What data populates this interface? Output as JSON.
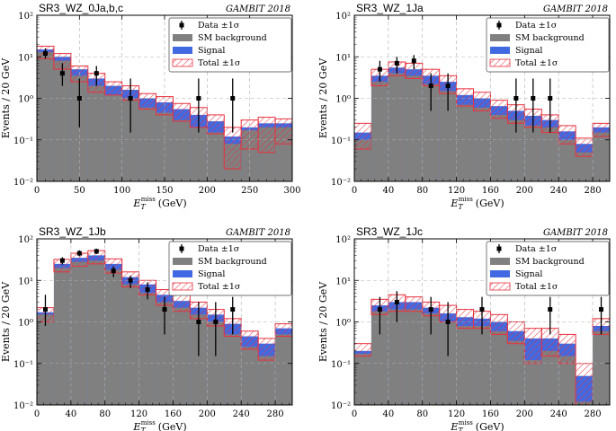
{
  "figure": {
    "watermark": "GAMBIT 2018",
    "colors": {
      "background": "#808080",
      "signal": "#4169e1",
      "total": "#e8303e",
      "data": "#000000",
      "grid": "#b0b0b0"
    }
  },
  "legend_entries": {
    "data": "Data ±1σ",
    "background": "SM background",
    "signal": "Signal",
    "total": "Total ±1σ"
  },
  "chart_data": [
    {
      "type": "bar",
      "title": "SR3_WZ_0Ja,b,c",
      "xlabel_main": "E",
      "xlabel_sub": "T",
      "xlabel_sup": "miss",
      "xlabel_unit": "(GeV)",
      "ylabel": "Events / 20 GeV",
      "xlim": [
        0,
        300
      ],
      "ylim": [
        0.01,
        100
      ],
      "yscale": "log",
      "xticks": [
        0,
        50,
        100,
        150,
        200,
        250,
        300
      ],
      "yticks": [
        "10⁻²",
        "10⁻¹",
        "10⁰",
        "10¹",
        "10²"
      ],
      "bin_edges": [
        0,
        20,
        40,
        60,
        80,
        100,
        120,
        140,
        160,
        180,
        200,
        220,
        240,
        260,
        280,
        300
      ],
      "background": [
        13,
        8,
        3.5,
        2.0,
        1.2,
        1.0,
        0.6,
        0.45,
        0.3,
        0.2,
        0.15,
        0.08,
        0.17,
        0.2,
        0.2
      ],
      "signal": [
        15,
        10,
        5,
        3.0,
        2.0,
        1.6,
        1.0,
        0.8,
        0.55,
        0.4,
        0.28,
        0.12,
        0.2,
        0.25,
        0.25
      ],
      "total_err_low": [
        9,
        5,
        2.5,
        1.4,
        1.2,
        0.9,
        0.55,
        0.4,
        0.28,
        0.2,
        0.14,
        0.02,
        0.06,
        0.05,
        0.08
      ],
      "total_err_high": [
        18,
        12,
        6,
        4,
        2.5,
        2.0,
        1.3,
        1.1,
        0.75,
        0.6,
        0.4,
        0.2,
        0.3,
        0.35,
        0.32
      ],
      "data_x": [
        10,
        30,
        50,
        70,
        110,
        190,
        230
      ],
      "data_y": [
        12,
        4,
        1,
        4,
        1,
        1,
        1
      ],
      "data_err_low": [
        9,
        2,
        0.2,
        2,
        0.15,
        0.15,
        0.15
      ],
      "data_err_high": [
        16,
        7,
        3,
        6,
        3,
        3,
        3
      ]
    },
    {
      "type": "bar",
      "title": "SR3_WZ_1Ja",
      "xlabel_main": "E",
      "xlabel_sub": "T",
      "xlabel_sup": "miss",
      "xlabel_unit": "(GeV)",
      "ylabel": "Events / 20 GeV",
      "xlim": [
        0,
        300
      ],
      "ylim": [
        0.01,
        100
      ],
      "yscale": "log",
      "xticks": [
        0,
        40,
        80,
        120,
        160,
        200,
        240,
        280
      ],
      "yticks": [
        "10⁻²",
        "10⁻¹",
        "10⁰",
        "10¹",
        "10²"
      ],
      "bin_edges": [
        0,
        20,
        40,
        60,
        80,
        100,
        120,
        140,
        160,
        180,
        200,
        220,
        240,
        260,
        280,
        300
      ],
      "background": [
        0.1,
        2.5,
        4.0,
        3.5,
        2.2,
        1.5,
        0.7,
        0.6,
        0.4,
        0.3,
        0.22,
        0.2,
        0.1,
        0.05,
        0.15
      ],
      "signal": [
        0.15,
        3.5,
        5.5,
        5.0,
        3.5,
        2.5,
        1.2,
        1.0,
        0.65,
        0.5,
        0.38,
        0.3,
        0.16,
        0.08,
        0.2
      ],
      "total_err_low": [
        0.06,
        2.0,
        3.5,
        3.0,
        2.0,
        1.3,
        0.65,
        0.5,
        0.33,
        0.25,
        0.2,
        0.15,
        0.08,
        0.04,
        0.12
      ],
      "total_err_high": [
        0.25,
        5.0,
        7.5,
        7.0,
        5.0,
        3.5,
        1.7,
        1.4,
        0.9,
        0.7,
        0.55,
        0.4,
        0.22,
        0.11,
        0.25
      ],
      "data_x": [
        30,
        50,
        70,
        90,
        110,
        190,
        210,
        230
      ],
      "data_y": [
        5,
        7,
        8,
        2,
        2,
        1,
        1,
        1
      ],
      "data_err_low": [
        2.5,
        4,
        5,
        0.5,
        0.5,
        0.15,
        0.15,
        0.15
      ],
      "data_err_high": [
        8,
        10,
        11,
        4,
        4,
        3,
        3,
        3
      ]
    },
    {
      "type": "bar",
      "title": "SR3_WZ_1Jb",
      "xlabel_main": "E",
      "xlabel_sub": "T",
      "xlabel_sup": "miss",
      "xlabel_unit": "(GeV)",
      "ylabel": "Events / 20 GeV",
      "xlim": [
        0,
        300
      ],
      "ylim": [
        0.01,
        100
      ],
      "yscale": "log",
      "xticks": [
        0,
        40,
        80,
        120,
        160,
        200,
        240,
        280
      ],
      "yticks": [
        "10⁻²",
        "10⁻¹",
        "10⁰",
        "10¹",
        "10²"
      ],
      "bin_edges": [
        0,
        20,
        40,
        60,
        80,
        100,
        120,
        140,
        160,
        180,
        200,
        220,
        240,
        260,
        280,
        300
      ],
      "background": [
        1.5,
        20,
        28,
        30,
        18,
        8,
        5,
        3,
        2.2,
        1.5,
        1.0,
        0.5,
        0.25,
        0.15,
        0.5
      ],
      "signal": [
        1.7,
        25,
        35,
        40,
        25,
        12,
        8,
        4.5,
        3.2,
        2.2,
        1.5,
        0.9,
        0.45,
        0.3,
        0.7
      ],
      "total_err_low": [
        1.0,
        16,
        22,
        25,
        15,
        7,
        4.5,
        2.5,
        1.8,
        1.2,
        0.8,
        0.45,
        0.22,
        0.12,
        0.45
      ],
      "total_err_high": [
        2.2,
        32,
        45,
        52,
        33,
        16,
        10,
        6,
        4.5,
        3,
        2,
        1.2,
        0.6,
        0.4,
        0.9
      ],
      "data_x": [
        10,
        30,
        50,
        70,
        90,
        110,
        130,
        150,
        190,
        210,
        230
      ],
      "data_y": [
        2,
        30,
        45,
        50,
        17,
        10,
        6,
        2,
        1,
        1,
        2
      ],
      "data_err_low": [
        0.8,
        24,
        38,
        43,
        12,
        6.5,
        3.5,
        0.5,
        0.15,
        0.15,
        0.5
      ],
      "data_err_high": [
        4.5,
        36,
        53,
        58,
        22,
        13,
        9,
        4,
        3,
        3,
        4
      ]
    },
    {
      "type": "bar",
      "title": "SR3_WZ_1Jc",
      "xlabel_main": "E",
      "xlabel_sub": "T",
      "xlabel_sup": "miss",
      "xlabel_unit": "(GeV)",
      "ylabel": "Events / 20 GeV",
      "xlim": [
        0,
        300
      ],
      "ylim": [
        0.01,
        100
      ],
      "yscale": "log",
      "xticks": [
        0,
        40,
        80,
        120,
        160,
        200,
        240,
        280
      ],
      "yticks": [
        "10⁻²",
        "10⁻¹",
        "10⁰",
        "10¹",
        "10²"
      ],
      "bin_edges": [
        0,
        20,
        40,
        60,
        80,
        100,
        120,
        140,
        160,
        180,
        200,
        220,
        240,
        260,
        280,
        300
      ],
      "background": [
        0.17,
        1.8,
        2.0,
        2.0,
        1.6,
        1.0,
        0.8,
        0.8,
        0.6,
        0.35,
        0.12,
        0.2,
        0.15,
        0.012,
        0.6
      ],
      "signal": [
        0.2,
        2.5,
        3.0,
        3.0,
        2.2,
        1.6,
        1.3,
        1.2,
        1.0,
        0.6,
        0.4,
        0.4,
        0.3,
        0.05,
        0.8
      ],
      "total_err_low": [
        0.15,
        1.5,
        1.8,
        1.8,
        1.4,
        1.0,
        0.7,
        0.7,
        0.5,
        0.3,
        0.1,
        0.15,
        0.1,
        0.01,
        0.5
      ],
      "total_err_high": [
        0.3,
        3.5,
        4.5,
        4.0,
        3.0,
        2.5,
        2.0,
        1.8,
        1.5,
        1.0,
        0.7,
        0.7,
        0.5,
        0.1,
        1.2
      ],
      "data_x": [
        30,
        50,
        90,
        110,
        150,
        230,
        290
      ],
      "data_y": [
        2,
        3,
        2,
        1,
        2,
        2,
        2
      ],
      "data_err_low": [
        0.5,
        1,
        0.5,
        0.15,
        0.5,
        0.5,
        0.5
      ],
      "data_err_high": [
        4,
        5.5,
        4,
        3,
        4,
        4,
        4
      ]
    }
  ]
}
